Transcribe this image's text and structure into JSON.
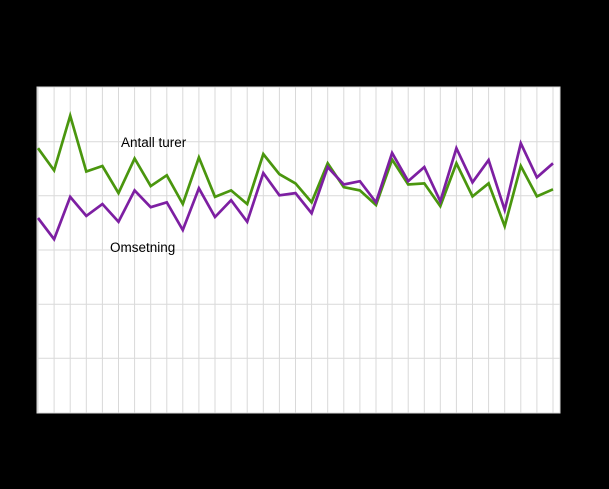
{
  "chart_data": {
    "type": "line",
    "title": "",
    "subtitle": "",
    "xlabel": "",
    "ylabel": "",
    "x_count": 33,
    "x_tick_labels": [],
    "y_tick_labels": [],
    "axis_tick_labels_visible": false,
    "grid": true,
    "legend_position": "inline-annotations",
    "ylim": [
      0,
      6
    ],
    "y_unit": "gridline-units (no axis labels visible in image; 6 horizontal grid intervals)",
    "series": [
      {
        "name": "Antall turer",
        "color": "#4a960e",
        "values": [
          4.88,
          4.47,
          5.48,
          4.45,
          4.55,
          4.05,
          4.69,
          4.18,
          4.38,
          3.85,
          4.71,
          3.98,
          4.1,
          3.85,
          4.77,
          4.4,
          4.23,
          3.88,
          4.6,
          4.16,
          4.1,
          3.83,
          4.67,
          4.21,
          4.23,
          3.81,
          4.6,
          3.99,
          4.23,
          3.44,
          4.55,
          3.99,
          4.12
        ]
      },
      {
        "name": "Omsetning",
        "color": "#7d1fa2",
        "values": [
          3.59,
          3.2,
          3.98,
          3.63,
          3.85,
          3.52,
          4.1,
          3.79,
          3.88,
          3.37,
          4.14,
          3.61,
          3.92,
          3.52,
          4.42,
          4.01,
          4.05,
          3.68,
          4.53,
          4.21,
          4.27,
          3.88,
          4.79,
          4.27,
          4.53,
          3.9,
          4.88,
          4.25,
          4.66,
          3.74,
          4.97,
          4.34,
          4.6
        ]
      }
    ]
  },
  "colors": {
    "page_background": "#000000",
    "plot_background": "#ffffff",
    "gridline": "#d9d9d9",
    "label_text": "#000000"
  }
}
